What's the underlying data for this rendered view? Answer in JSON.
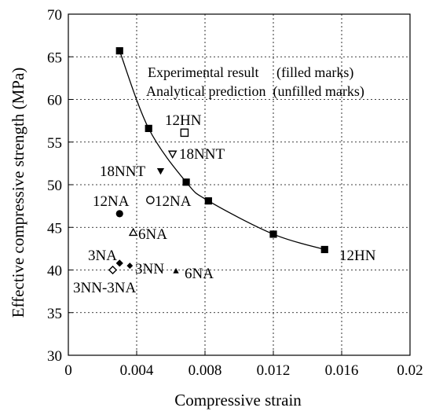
{
  "chart_data": {
    "type": "scatter",
    "title": "",
    "xlabel": "Compressive strain",
    "ylabel": "Effective compressive strength (MPa)",
    "xlim": [
      0,
      0.02
    ],
    "ylim": [
      30,
      70
    ],
    "x_ticks": [
      0,
      0.004,
      0.008,
      0.012,
      0.016,
      0.02
    ],
    "x_tick_labels": [
      "0",
      "0.004",
      "0.008",
      "0.012",
      "0.016",
      "0.02"
    ],
    "y_ticks": [
      30,
      35,
      40,
      45,
      50,
      55,
      60,
      65,
      70
    ],
    "y_tick_labels": [
      "30",
      "35",
      "40",
      "45",
      "50",
      "55",
      "60",
      "65",
      "70"
    ],
    "grid": true,
    "legend_note": [
      "Experimental result     (filled marks)",
      "Analytical prediction  (unfilled marks)"
    ],
    "curve": {
      "label": "12HN",
      "marker": "filled-square",
      "x": [
        0.003,
        0.0047,
        0.0069,
        0.0082,
        0.012,
        0.015
      ],
      "y": [
        65.7,
        56.6,
        50.3,
        48.1,
        44.2,
        42.4
      ]
    },
    "points": [
      {
        "label": "12HN",
        "marker": "open-square",
        "x": 0.0068,
        "y": 56.1
      },
      {
        "label": "18NNT",
        "marker": "open-down-triangle",
        "x": 0.0061,
        "y": 53.6
      },
      {
        "label": "18NNT",
        "marker": "filled-down-triangle",
        "x": 0.0054,
        "y": 51.6
      },
      {
        "label": "12NA",
        "marker": "open-circle",
        "x": 0.0048,
        "y": 48.2
      },
      {
        "label": "12NA",
        "marker": "filled-circle",
        "x": 0.003,
        "y": 46.6
      },
      {
        "label": "6NA",
        "marker": "open-up-triangle",
        "x": 0.0038,
        "y": 44.4
      },
      {
        "label": "3NA",
        "marker": "filled-diamond",
        "x": 0.003,
        "y": 40.8
      },
      {
        "label": "3NN",
        "marker": "filled-diamond-small",
        "x": 0.0036,
        "y": 40.5
      },
      {
        "label": "6NA",
        "marker": "filled-up-triangle",
        "x": 0.0063,
        "y": 39.9
      },
      {
        "label": "3NN-3NA",
        "marker": "open-diamond",
        "x": 0.0026,
        "y": 40.0
      }
    ]
  }
}
